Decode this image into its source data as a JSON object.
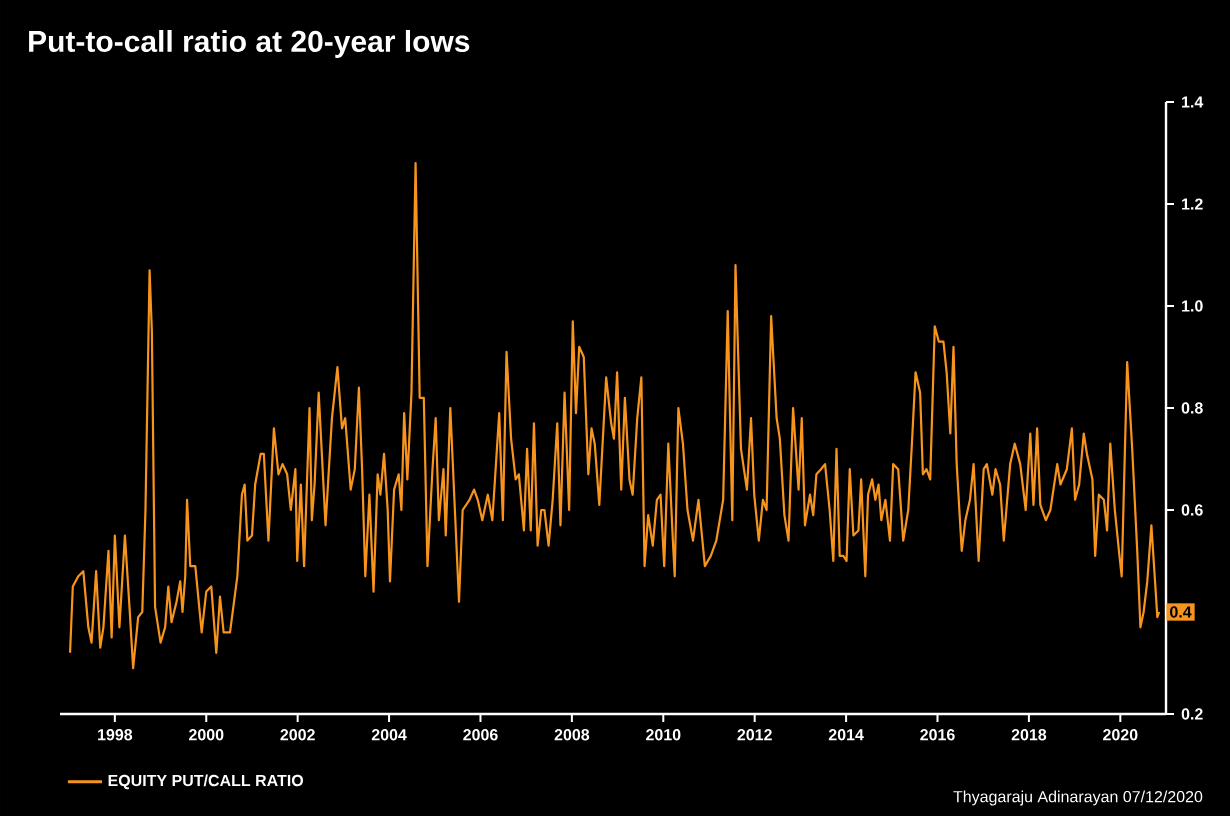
{
  "chart_data": {
    "type": "line",
    "title": "Put-to-call ratio at 20-year lows",
    "xlim": [
      1996.8,
      2021.0
    ],
    "xticks": [
      1998,
      2000,
      2002,
      2004,
      2006,
      2008,
      2010,
      2012,
      2014,
      2016,
      2018,
      2020
    ],
    "ylim": [
      0.2,
      1.4
    ],
    "yticks": [
      {
        "value": 0.2,
        "label": "0.2"
      },
      {
        "value": 0.4,
        "label": null
      },
      {
        "value": 0.6,
        "label": "0.6"
      },
      {
        "value": 0.8,
        "label": "0.8"
      },
      {
        "value": 1.0,
        "label": "1.0"
      },
      {
        "value": 1.2,
        "label": "1.2"
      },
      {
        "value": 1.4,
        "label": "1.4"
      }
    ],
    "grid": false,
    "legend": "bottom left",
    "marker": "none",
    "line_style": "solid",
    "annotations": [
      {
        "text": "0.4",
        "y": 0.4
      },
      "Thyagaraju Adinarayan 07/12/2020"
    ],
    "series": [
      {
        "name": "EQUITY PUT/CALL RATIO",
        "color": "#f7941d",
        "x": [
          1997.02,
          1997.08,
          1997.2,
          1997.31,
          1997.42,
          1997.49,
          1997.59,
          1997.68,
          1997.75,
          1997.86,
          1997.93,
          1998.0,
          1998.1,
          1998.22,
          1998.32,
          1998.4,
          1998.51,
          1998.6,
          1998.67,
          1998.76,
          1998.81,
          1998.88,
          1999.0,
          1999.1,
          1999.17,
          1999.24,
          1999.35,
          1999.43,
          1999.48,
          1999.54,
          1999.58,
          1999.65,
          1999.76,
          1999.9,
          2000.0,
          2000.11,
          2000.22,
          2000.3,
          2000.38,
          2000.52,
          2000.68,
          2000.78,
          2000.84,
          2000.9,
          2001.0,
          2001.07,
          2001.19,
          2001.26,
          2001.36,
          2001.48,
          2001.58,
          2001.67,
          2001.77,
          2001.85,
          2001.95,
          2001.99,
          2002.07,
          2002.14,
          2002.26,
          2002.31,
          2002.37,
          2002.46,
          2002.61,
          2002.75,
          2002.87,
          2002.97,
          2003.04,
          2003.16,
          2003.25,
          2003.34,
          2003.41,
          2003.48,
          2003.57,
          2003.66,
          2003.75,
          2003.81,
          2003.89,
          2003.97,
          2004.02,
          2004.11,
          2004.21,
          2004.27,
          2004.33,
          2004.4,
          2004.49,
          2004.58,
          2004.67,
          2004.76,
          2004.84,
          2004.95,
          2005.02,
          2005.09,
          2005.19,
          2005.24,
          2005.34,
          2005.53,
          2005.61,
          2005.76,
          2005.86,
          2005.94,
          2006.04,
          2006.16,
          2006.26,
          2006.41,
          2006.49,
          2006.57,
          2006.67,
          2006.77,
          2006.84,
          2006.95,
          2007.02,
          2007.1,
          2007.17,
          2007.25,
          2007.33,
          2007.4,
          2007.49,
          2007.58,
          2007.68,
          2007.75,
          2007.84,
          2007.94,
          2008.02,
          2008.09,
          2008.16,
          2008.26,
          2008.36,
          2008.43,
          2008.5,
          2008.6,
          2008.75,
          2008.86,
          2008.92,
          2008.99,
          2009.08,
          2009.16,
          2009.26,
          2009.33,
          2009.43,
          2009.52,
          2009.59,
          2009.67,
          2009.77,
          2009.86,
          2009.94,
          2010.02,
          2010.11,
          2010.21,
          2010.25,
          2010.33,
          2010.43,
          2010.53,
          2010.65,
          2010.77,
          2010.91,
          2011.04,
          2011.16,
          2011.31,
          2011.41,
          2011.51,
          2011.58,
          2011.7,
          2011.83,
          2011.92,
          2011.99,
          2012.09,
          2012.18,
          2012.26,
          2012.36,
          2012.48,
          2012.55,
          2012.65,
          2012.74,
          2012.84,
          2012.96,
          2013.03,
          2013.1,
          2013.21,
          2013.28,
          2013.35,
          2013.45,
          2013.54,
          2013.64,
          2013.72,
          2013.79,
          2013.86,
          2013.94,
          2014.01,
          2014.08,
          2014.16,
          2014.27,
          2014.33,
          2014.42,
          2014.48,
          2014.57,
          2014.64,
          2014.71,
          2014.77,
          2014.86,
          2014.96,
          2015.03,
          2015.14,
          2015.25,
          2015.36,
          2015.44,
          2015.52,
          2015.62,
          2015.68,
          2015.76,
          2015.84,
          2015.94,
          2016.03,
          2016.13,
          2016.2,
          2016.28,
          2016.35,
          2016.42,
          2016.53,
          2016.61,
          2016.71,
          2016.79,
          2016.9,
          2017.01,
          2017.08,
          2017.2,
          2017.27,
          2017.37,
          2017.45,
          2017.59,
          2017.69,
          2017.81,
          2017.93,
          2018.03,
          2018.1,
          2018.18,
          2018.25,
          2018.37,
          2018.47,
          2018.62,
          2018.69,
          2018.83,
          2018.94,
          2019.01,
          2019.1,
          2019.2,
          2019.27,
          2019.39,
          2019.45,
          2019.53,
          2019.64,
          2019.71,
          2019.78,
          2019.88,
          2019.97,
          2020.03,
          2020.15,
          2020.26,
          2020.37,
          2020.44,
          2020.51,
          2020.59,
          2020.68,
          2020.76,
          2020.81,
          2020.85
        ],
        "values": [
          0.32,
          0.45,
          0.47,
          0.48,
          0.37,
          0.34,
          0.48,
          0.33,
          0.37,
          0.52,
          0.35,
          0.55,
          0.37,
          0.55,
          0.41,
          0.29,
          0.39,
          0.4,
          0.6,
          1.07,
          0.95,
          0.41,
          0.34,
          0.37,
          0.45,
          0.38,
          0.42,
          0.46,
          0.4,
          0.47,
          0.62,
          0.49,
          0.49,
          0.36,
          0.44,
          0.45,
          0.32,
          0.43,
          0.36,
          0.36,
          0.47,
          0.63,
          0.65,
          0.54,
          0.55,
          0.65,
          0.71,
          0.71,
          0.54,
          0.76,
          0.67,
          0.69,
          0.67,
          0.6,
          0.68,
          0.5,
          0.65,
          0.49,
          0.8,
          0.58,
          0.65,
          0.83,
          0.57,
          0.78,
          0.88,
          0.76,
          0.78,
          0.64,
          0.68,
          0.84,
          0.68,
          0.47,
          0.63,
          0.44,
          0.67,
          0.63,
          0.71,
          0.6,
          0.46,
          0.64,
          0.67,
          0.6,
          0.79,
          0.66,
          0.83,
          1.28,
          0.82,
          0.82,
          0.49,
          0.68,
          0.78,
          0.58,
          0.68,
          0.55,
          0.8,
          0.42,
          0.6,
          0.62,
          0.64,
          0.62,
          0.58,
          0.63,
          0.58,
          0.79,
          0.58,
          0.91,
          0.74,
          0.66,
          0.67,
          0.56,
          0.72,
          0.56,
          0.77,
          0.53,
          0.6,
          0.6,
          0.53,
          0.62,
          0.77,
          0.57,
          0.83,
          0.6,
          0.97,
          0.79,
          0.92,
          0.9,
          0.67,
          0.76,
          0.73,
          0.61,
          0.86,
          0.77,
          0.74,
          0.87,
          0.64,
          0.82,
          0.66,
          0.63,
          0.78,
          0.86,
          0.49,
          0.59,
          0.53,
          0.62,
          0.63,
          0.49,
          0.73,
          0.54,
          0.47,
          0.8,
          0.73,
          0.6,
          0.54,
          0.62,
          0.49,
          0.51,
          0.54,
          0.62,
          0.99,
          0.58,
          1.08,
          0.72,
          0.64,
          0.78,
          0.63,
          0.54,
          0.62,
          0.6,
          0.98,
          0.78,
          0.74,
          0.59,
          0.54,
          0.8,
          0.64,
          0.78,
          0.57,
          0.63,
          0.59,
          0.67,
          0.68,
          0.69,
          0.6,
          0.5,
          0.72,
          0.51,
          0.51,
          0.5,
          0.68,
          0.55,
          0.56,
          0.66,
          0.47,
          0.63,
          0.66,
          0.62,
          0.65,
          0.58,
          0.62,
          0.54,
          0.69,
          0.68,
          0.54,
          0.6,
          0.73,
          0.87,
          0.83,
          0.67,
          0.68,
          0.66,
          0.96,
          0.93,
          0.93,
          0.87,
          0.75,
          0.92,
          0.69,
          0.52,
          0.58,
          0.62,
          0.69,
          0.5,
          0.68,
          0.69,
          0.63,
          0.68,
          0.65,
          0.54,
          0.69,
          0.73,
          0.69,
          0.6,
          0.75,
          0.61,
          0.76,
          0.61,
          0.58,
          0.6,
          0.69,
          0.65,
          0.68,
          0.76,
          0.62,
          0.65,
          0.75,
          0.71,
          0.66,
          0.51,
          0.63,
          0.62,
          0.56,
          0.73,
          0.6,
          0.52,
          0.47,
          0.89,
          0.72,
          0.52,
          0.37,
          0.4,
          0.46,
          0.57,
          0.46,
          0.39,
          0.4
        ]
      }
    ]
  }
}
